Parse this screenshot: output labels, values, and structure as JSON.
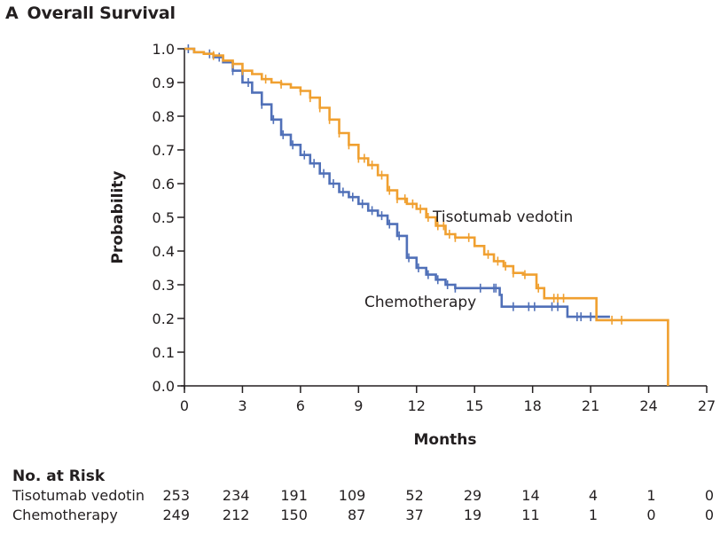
{
  "panel": {
    "letter": "A",
    "title": "Overall Survival"
  },
  "chart_data": {
    "type": "line",
    "subtype": "kaplan-meier step",
    "title": "Overall Survival",
    "xlabel": "Months",
    "ylabel": "Probability",
    "xlim": [
      0,
      27
    ],
    "ylim": [
      0,
      1.0
    ],
    "x_ticks": [
      0,
      3,
      6,
      9,
      12,
      15,
      18,
      21,
      24,
      27
    ],
    "y_ticks": [
      "0.0",
      "0.1",
      "0.2",
      "0.3",
      "0.4",
      "0.5",
      "0.6",
      "0.7",
      "0.8",
      "0.9",
      "1.0"
    ],
    "grid": false,
    "series": [
      {
        "name": "Tisotumab vedotin",
        "color": "#f0a030",
        "label_position": "right of curve near month 13",
        "points": [
          [
            0,
            1.0
          ],
          [
            0.5,
            0.99
          ],
          [
            1.0,
            0.985
          ],
          [
            1.5,
            0.98
          ],
          [
            2.0,
            0.965
          ],
          [
            2.5,
            0.955
          ],
          [
            3.0,
            0.935
          ],
          [
            3.5,
            0.925
          ],
          [
            4.0,
            0.91
          ],
          [
            4.5,
            0.9
          ],
          [
            5.0,
            0.895
          ],
          [
            5.5,
            0.885
          ],
          [
            6.0,
            0.875
          ],
          [
            6.5,
            0.855
          ],
          [
            7.0,
            0.825
          ],
          [
            7.5,
            0.79
          ],
          [
            8.0,
            0.75
          ],
          [
            8.5,
            0.715
          ],
          [
            9.0,
            0.675
          ],
          [
            9.5,
            0.655
          ],
          [
            10.0,
            0.625
          ],
          [
            10.5,
            0.58
          ],
          [
            11.0,
            0.555
          ],
          [
            11.5,
            0.54
          ],
          [
            12.0,
            0.525
          ],
          [
            12.5,
            0.5
          ],
          [
            13.0,
            0.475
          ],
          [
            13.5,
            0.45
          ],
          [
            14.0,
            0.44
          ],
          [
            14.5,
            0.44
          ],
          [
            15.0,
            0.415
          ],
          [
            15.5,
            0.39
          ],
          [
            16.0,
            0.37
          ],
          [
            16.5,
            0.355
          ],
          [
            17.0,
            0.335
          ],
          [
            17.5,
            0.33
          ],
          [
            18.0,
            0.33
          ],
          [
            18.2,
            0.29
          ],
          [
            18.6,
            0.26
          ],
          [
            19.5,
            0.26
          ],
          [
            21.3,
            0.26
          ],
          [
            21.3,
            0.195
          ],
          [
            23.0,
            0.195
          ],
          [
            25.0,
            0.195
          ],
          [
            25.0,
            0.0
          ]
        ],
        "censor_months": [
          1.5,
          2.5,
          3.0,
          4.2,
          5.0,
          6.0,
          6.5,
          7.0,
          7.5,
          8.0,
          8.5,
          9.0,
          9.3,
          9.7,
          10.2,
          10.6,
          11.0,
          11.4,
          11.8,
          12.2,
          12.6,
          13.1,
          13.4,
          13.7,
          14.0,
          14.7,
          15.7,
          16.2,
          16.6,
          17.0,
          17.6,
          18.3,
          19.1,
          19.3,
          19.6,
          22.1,
          22.6
        ]
      },
      {
        "name": "Chemotherapy",
        "color": "#5070b8",
        "label_position": "left of curve near month 14",
        "points": [
          [
            0,
            1.0
          ],
          [
            0.5,
            0.99
          ],
          [
            1.0,
            0.985
          ],
          [
            1.5,
            0.975
          ],
          [
            2.0,
            0.96
          ],
          [
            2.5,
            0.935
          ],
          [
            3.0,
            0.9
          ],
          [
            3.5,
            0.87
          ],
          [
            4.0,
            0.835
          ],
          [
            4.5,
            0.79
          ],
          [
            5.0,
            0.745
          ],
          [
            5.5,
            0.715
          ],
          [
            6.0,
            0.685
          ],
          [
            6.5,
            0.66
          ],
          [
            7.0,
            0.63
          ],
          [
            7.5,
            0.6
          ],
          [
            8.0,
            0.575
          ],
          [
            8.5,
            0.56
          ],
          [
            9.0,
            0.54
          ],
          [
            9.5,
            0.52
          ],
          [
            10.0,
            0.505
          ],
          [
            10.5,
            0.48
          ],
          [
            11.0,
            0.445
          ],
          [
            11.5,
            0.38
          ],
          [
            12.0,
            0.35
          ],
          [
            12.5,
            0.33
          ],
          [
            13.0,
            0.315
          ],
          [
            13.5,
            0.3
          ],
          [
            14.0,
            0.29
          ],
          [
            15.0,
            0.29
          ],
          [
            16.0,
            0.29
          ],
          [
            16.3,
            0.27
          ],
          [
            16.4,
            0.235
          ],
          [
            17.0,
            0.235
          ],
          [
            18.0,
            0.235
          ],
          [
            19.0,
            0.235
          ],
          [
            19.7,
            0.235
          ],
          [
            19.8,
            0.205
          ],
          [
            21.0,
            0.205
          ],
          [
            22.0,
            0.205
          ]
        ],
        "censor_months": [
          0.2,
          1.3,
          1.8,
          2.5,
          3.3,
          4.0,
          4.6,
          5.1,
          5.6,
          6.2,
          6.7,
          7.2,
          7.7,
          8.2,
          8.7,
          9.2,
          9.7,
          10.2,
          10.6,
          11.1,
          11.6,
          12.1,
          12.6,
          13.1,
          13.6,
          14.0,
          15.3,
          16.0,
          16.1,
          17.0,
          17.8,
          18.1,
          19.0,
          19.3,
          20.3,
          20.5,
          21.0
        ]
      }
    ],
    "risk_table": {
      "title": "No. at Risk",
      "months": [
        0,
        3,
        6,
        9,
        12,
        15,
        18,
        21,
        24,
        27
      ],
      "rows": [
        {
          "name": "Tisotumab vedotin",
          "values": [
            253,
            234,
            191,
            109,
            52,
            29,
            14,
            4,
            1,
            0
          ]
        },
        {
          "name": "Chemotherapy",
          "values": [
            249,
            212,
            150,
            87,
            37,
            19,
            11,
            1,
            0,
            0
          ]
        }
      ]
    }
  }
}
